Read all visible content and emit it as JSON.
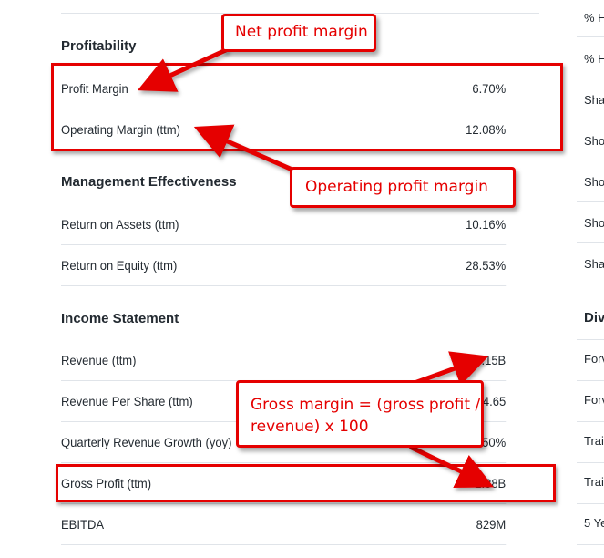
{
  "sections": [
    {
      "title": "Profitability",
      "rows": [
        {
          "label": "Profit Margin",
          "value": "6.70%"
        },
        {
          "label": "Operating Margin (ttm)",
          "value": "12.08%"
        }
      ]
    },
    {
      "title": "Management Effectiveness",
      "rows": [
        {
          "label": "Return on Assets (ttm)",
          "value": "10.16%"
        },
        {
          "label": "Return on Equity (ttm)",
          "value": "28.53%"
        }
      ]
    },
    {
      "title": "Income Statement",
      "rows": [
        {
          "label": "Revenue (ttm)",
          "value": "6.15B"
        },
        {
          "label": "Revenue Per Share (ttm)",
          "value": "34.65"
        },
        {
          "label": "Quarterly Revenue Growth (yoy)",
          "value": "7.50%"
        },
        {
          "label": "Gross Profit (ttm)",
          "value": "2.38B"
        },
        {
          "label": "EBITDA",
          "value": "829M"
        }
      ]
    }
  ],
  "right_column": {
    "items": [
      "% H",
      "% H",
      "Sha",
      "Sho",
      "Sho",
      "Sho",
      "Sha"
    ],
    "section_title": "Div",
    "items2": [
      "Forv",
      "Forv",
      "Trai",
      "Trai",
      "5 Ye"
    ]
  },
  "annotations": {
    "net_profit_margin": "Net profit margin",
    "operating_profit_margin": "Operating profit margin",
    "gross_margin_line1": "Gross margin = (gross profit /",
    "gross_margin_line2": "revenue) x 100"
  },
  "colors": {
    "annotation_red": "#e50000",
    "divider": "#e0e4e9",
    "text": "#232a31"
  }
}
